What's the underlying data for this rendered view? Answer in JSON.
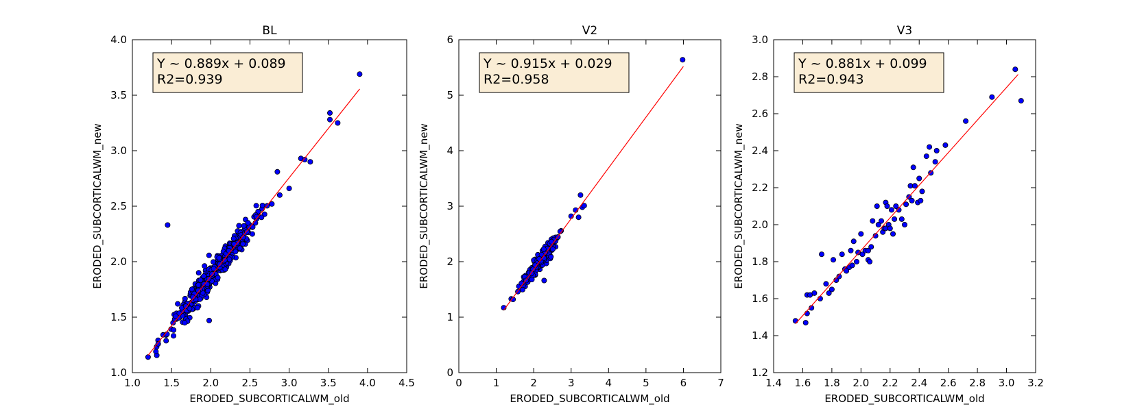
{
  "chart_data": [
    {
      "type": "scatter",
      "title": "BL",
      "xlabel": "ERODED_SUBCORTICALWM_old",
      "ylabel": "ERODED_SUBCORTICALWM_new",
      "xlim": [
        1.0,
        4.5
      ],
      "ylim": [
        1.0,
        4.0
      ],
      "x_ticks": [
        "1.0",
        "1.5",
        "2.0",
        "2.5",
        "3.0",
        "3.5",
        "4.0",
        "4.5"
      ],
      "y_ticks": [
        "1.0",
        "1.5",
        "2.0",
        "2.5",
        "3.0",
        "3.5",
        "4.0"
      ],
      "annotation": [
        "Y ~ 0.889x + 0.089",
        "R2=0.939"
      ],
      "fit": {
        "slope": 0.889,
        "intercept": 0.089,
        "x_range": [
          1.2,
          3.9
        ]
      },
      "points": {
        "dense_band": {
          "x_range": [
            1.2,
            2.85
          ],
          "count": 420,
          "spread": 0.055
        },
        "explicit": [
          [
            1.2,
            1.14
          ],
          [
            1.3,
            1.19
          ],
          [
            1.33,
            1.26
          ],
          [
            1.45,
            2.33
          ],
          [
            1.98,
            1.47
          ],
          [
            2.78,
            2.52
          ],
          [
            2.85,
            2.81
          ],
          [
            2.88,
            2.6
          ],
          [
            3.0,
            2.66
          ],
          [
            3.15,
            2.93
          ],
          [
            3.2,
            2.92
          ],
          [
            3.27,
            2.9
          ],
          [
            3.52,
            3.34
          ],
          [
            3.52,
            3.28
          ],
          [
            3.62,
            3.25
          ],
          [
            3.9,
            3.69
          ]
        ]
      }
    },
    {
      "type": "scatter",
      "title": "V2",
      "xlabel": "ERODED_SUBCORTICALWM_old",
      "ylabel": "ERODED_SUBCORTICALWM_new",
      "xlim": [
        0,
        7
      ],
      "ylim": [
        0,
        6
      ],
      "x_ticks": [
        "0",
        "1",
        "2",
        "3",
        "4",
        "5",
        "6",
        "7"
      ],
      "y_ticks": [
        "0",
        "1",
        "2",
        "3",
        "4",
        "5",
        "6"
      ],
      "annotation": [
        "Y ~ 0.915x + 0.029",
        "R2=0.958"
      ],
      "fit": {
        "slope": 0.915,
        "intercept": 0.029,
        "x_range": [
          1.2,
          6.0
        ]
      },
      "points": {
        "dense_band": {
          "x_range": [
            1.4,
            2.85
          ],
          "count": 230,
          "spread": 0.07
        },
        "explicit": [
          [
            1.2,
            1.17
          ],
          [
            1.4,
            1.33
          ],
          [
            1.45,
            1.32
          ],
          [
            2.28,
            1.66
          ],
          [
            3.0,
            2.82
          ],
          [
            3.12,
            2.93
          ],
          [
            3.2,
            2.8
          ],
          [
            3.25,
            3.2
          ],
          [
            3.3,
            2.98
          ],
          [
            3.35,
            3.01
          ],
          [
            5.98,
            5.64
          ]
        ]
      }
    },
    {
      "type": "scatter",
      "title": "V3",
      "xlabel": "ERODED_SUBCORTICALWM_old",
      "ylabel": "ERODED_SUBCORTICALWM_new",
      "xlim": [
        1.4,
        3.2
      ],
      "ylim": [
        1.2,
        3.0
      ],
      "x_ticks": [
        "1.4",
        "1.6",
        "1.8",
        "2.0",
        "2.2",
        "2.4",
        "2.6",
        "2.8",
        "3.0",
        "3.2"
      ],
      "y_ticks": [
        "1.2",
        "1.4",
        "1.6",
        "1.8",
        "2.0",
        "2.2",
        "2.4",
        "2.6",
        "2.8",
        "3.0"
      ],
      "annotation": [
        "Y ~ 0.881x + 0.099",
        "R2=0.943"
      ],
      "fit": {
        "slope": 0.881,
        "intercept": 0.099,
        "x_range": [
          1.55,
          3.08
        ]
      },
      "points": {
        "explicit": [
          [
            1.55,
            1.48
          ],
          [
            1.62,
            1.47
          ],
          [
            1.63,
            1.52
          ],
          [
            1.63,
            1.62
          ],
          [
            1.65,
            1.62
          ],
          [
            1.68,
            1.63
          ],
          [
            1.66,
            1.55
          ],
          [
            1.72,
            1.6
          ],
          [
            1.73,
            1.84
          ],
          [
            1.76,
            1.68
          ],
          [
            1.78,
            1.63
          ],
          [
            1.8,
            1.65
          ],
          [
            1.81,
            1.81
          ],
          [
            1.83,
            1.7
          ],
          [
            1.85,
            1.72
          ],
          [
            1.87,
            1.84
          ],
          [
            1.89,
            1.76
          ],
          [
            1.9,
            1.75
          ],
          [
            1.92,
            1.77
          ],
          [
            1.94,
            1.78
          ],
          [
            1.93,
            1.86
          ],
          [
            1.95,
            1.91
          ],
          [
            1.97,
            1.8
          ],
          [
            1.98,
            1.85
          ],
          [
            2.0,
            1.95
          ],
          [
            2.01,
            1.84
          ],
          [
            2.03,
            1.86
          ],
          [
            2.05,
            1.86
          ],
          [
            2.05,
            1.81
          ],
          [
            2.06,
            1.8
          ],
          [
            2.07,
            1.88
          ],
          [
            2.08,
            2.02
          ],
          [
            2.1,
            1.94
          ],
          [
            2.11,
            2.1
          ],
          [
            2.12,
            2.0
          ],
          [
            2.14,
            2.02
          ],
          [
            2.15,
            1.96
          ],
          [
            2.16,
            1.98
          ],
          [
            2.17,
            1.98
          ],
          [
            2.17,
            2.12
          ],
          [
            2.18,
            2.1
          ],
          [
            2.19,
            2.0
          ],
          [
            2.2,
            1.98
          ],
          [
            2.21,
            2.08
          ],
          [
            2.22,
            1.95
          ],
          [
            2.23,
            2.03
          ],
          [
            2.24,
            2.1
          ],
          [
            2.26,
            2.08
          ],
          [
            2.28,
            2.03
          ],
          [
            2.3,
            2.0
          ],
          [
            2.31,
            2.11
          ],
          [
            2.33,
            2.15
          ],
          [
            2.34,
            2.21
          ],
          [
            2.35,
            2.13
          ],
          [
            2.36,
            2.31
          ],
          [
            2.37,
            2.21
          ],
          [
            2.39,
            2.12
          ],
          [
            2.4,
            2.25
          ],
          [
            2.41,
            2.13
          ],
          [
            2.42,
            2.18
          ],
          [
            2.45,
            2.37
          ],
          [
            2.47,
            2.42
          ],
          [
            2.48,
            2.28
          ],
          [
            2.51,
            2.34
          ],
          [
            2.52,
            2.4
          ],
          [
            2.58,
            2.43
          ],
          [
            2.72,
            2.56
          ],
          [
            2.9,
            2.69
          ],
          [
            3.06,
            2.84
          ],
          [
            3.1,
            2.67
          ]
        ]
      }
    }
  ]
}
